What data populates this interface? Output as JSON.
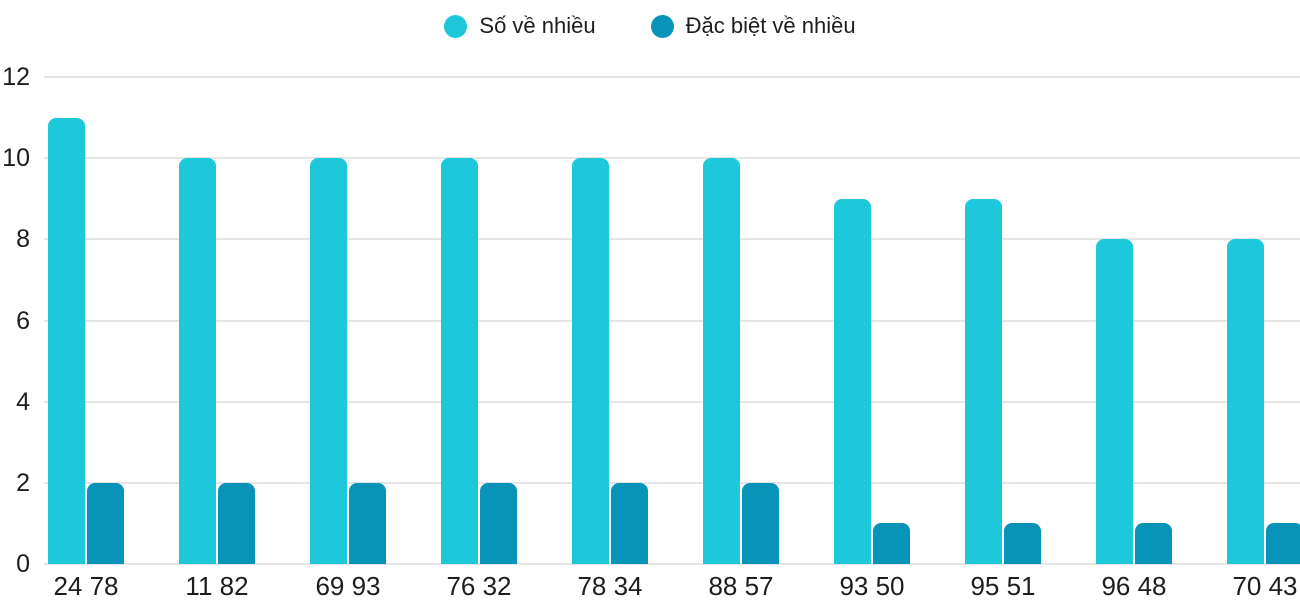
{
  "chart_data": {
    "type": "bar",
    "title": "",
    "xlabel": "",
    "ylabel": "",
    "categories": [
      "24 78",
      "11 82",
      "69 93",
      "76 32",
      "78 34",
      "88 57",
      "93 50",
      "95 51",
      "96 48",
      "70 43"
    ],
    "series": [
      {
        "name": "Số về nhiều",
        "color": "#1EC8DB",
        "values": [
          11,
          10,
          10,
          10,
          10,
          10,
          9,
          9,
          8,
          8
        ]
      },
      {
        "name": "Đặc biệt về nhiều",
        "color": "#0893B8",
        "values": [
          2,
          2,
          2,
          2,
          2,
          2,
          1,
          1,
          1,
          1
        ]
      }
    ],
    "ylim": [
      0,
      12
    ],
    "yticks": [
      0,
      2,
      4,
      6,
      8,
      10,
      12
    ],
    "grid": true,
    "legend_position": "top-center"
  },
  "colors": {
    "text": "#1d1d1d",
    "grid": "#e5e5e5",
    "background": "#ffffff"
  }
}
